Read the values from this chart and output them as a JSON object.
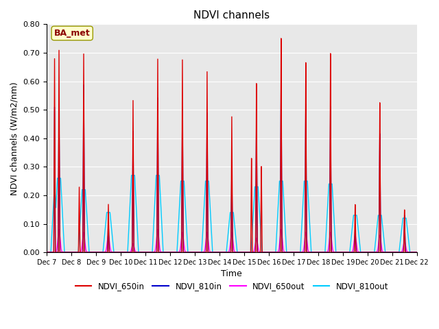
{
  "title": "NDVI channels",
  "xlabel": "Time",
  "ylabel": "NDVI channels (W/m2/nm)",
  "ylim": [
    0.0,
    0.8
  ],
  "yticks": [
    0.0,
    0.1,
    0.2,
    0.3,
    0.4,
    0.5,
    0.6,
    0.7,
    0.8
  ],
  "bg_color": "#e8e8e8",
  "annotation_label": "BA_met",
  "annotation_color": "#8B0000",
  "annotation_bg": "#ffffcc",
  "days": [
    "Dec 7",
    "Dec 8",
    "Dec 9",
    "Dec 10",
    "Dec 11",
    "Dec 12",
    "Dec 13",
    "Dec 14",
    "Dec 15",
    "Dec 16",
    "Dec 17",
    "Dec 18",
    "Dec 19",
    "Dec 20",
    "Dec 21",
    "Dec 22"
  ],
  "peaks_650in": [
    0.71,
    0.7,
    0.17,
    0.54,
    0.69,
    0.69,
    0.65,
    0.49,
    0.61,
    0.77,
    0.68,
    0.71,
    0.17,
    0.53,
    0.15,
    0.0
  ],
  "peaks_810in": [
    0.52,
    0.59,
    0.11,
    0.43,
    0.55,
    0.52,
    0.5,
    0.3,
    0.48,
    0.62,
    0.53,
    0.52,
    0.08,
    0.42,
    0.13,
    0.0
  ],
  "peaks_650out": [
    0.08,
    0.07,
    0.06,
    0.03,
    0.08,
    0.07,
    0.07,
    0.07,
    0.05,
    0.08,
    0.07,
    0.07,
    0.06,
    0.06,
    0.04,
    0.0
  ],
  "peaks_810out": [
    0.26,
    0.22,
    0.14,
    0.27,
    0.27,
    0.25,
    0.25,
    0.14,
    0.23,
    0.25,
    0.25,
    0.24,
    0.13,
    0.13,
    0.12,
    0.0
  ],
  "color_650in": "#dd0000",
  "color_810in": "#0000cc",
  "color_650out": "#ff00ff",
  "color_810out": "#00ccff",
  "lw_650in": 1.0,
  "lw_810in": 1.0,
  "lw_650out": 1.0,
  "lw_810out": 1.0
}
